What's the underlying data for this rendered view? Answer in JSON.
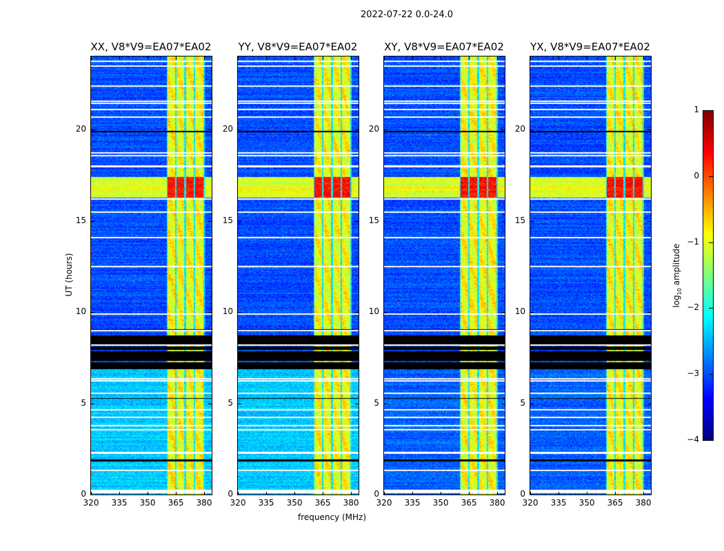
{
  "chart_data": {
    "type": "heatmap",
    "title": "2022-07-22 0.0-24.0",
    "xlabel": "frequency (MHz)",
    "ylabel": "UT (hours)",
    "xlim": [
      320,
      384
    ],
    "ylim": [
      0,
      24
    ],
    "xticks": [
      320,
      335,
      350,
      365,
      380
    ],
    "yticks": [
      0,
      5,
      10,
      15,
      20
    ],
    "panels": [
      {
        "title": "XX, V8*V9=EA07*EA02",
        "pol": "XX",
        "early_background": -2.4
      },
      {
        "title": "YY, V8*V9=EA07*EA02",
        "pol": "YY",
        "early_background": -2.4
      },
      {
        "title": "XY, V8*V9=EA07*EA02",
        "pol": "XY",
        "early_background": -2.9
      },
      {
        "title": "YX, V8*V9=EA07*EA02",
        "pol": "YX",
        "early_background": -2.9
      }
    ],
    "background_level": -3.0,
    "rfi_band_mhz": [
      360,
      380
    ],
    "rfi_subbands_mhz": [
      [
        360.3,
        364.3
      ],
      [
        365.2,
        369.2
      ],
      [
        370.2,
        374.2
      ],
      [
        375.2,
        379.5
      ]
    ],
    "rfi_level": -0.9,
    "bright_interval_hours": [
      16.3,
      17.4
    ],
    "zero_interval_hours": [
      6.9,
      8.75
    ],
    "flagged_hours": [
      23.75,
      23.5,
      22.4,
      21.55,
      21.45,
      21.1,
      20.7,
      18.75,
      18.6,
      18.0,
      16.2,
      15.5,
      14.1,
      12.5,
      9.9,
      9.0,
      8.2,
      6.35,
      6.25,
      5.55,
      4.65,
      4.25,
      3.8,
      3.55,
      2.3,
      1.35,
      0.25,
      0.15
    ],
    "colorbar": {
      "label": "log10 amplitude",
      "range": [
        -4,
        1
      ],
      "ticks": [
        1,
        0,
        -1,
        -2,
        -3,
        -4
      ],
      "tick_labels": [
        "1",
        "0",
        "−1",
        "−2",
        "−3",
        "−4"
      ]
    }
  }
}
